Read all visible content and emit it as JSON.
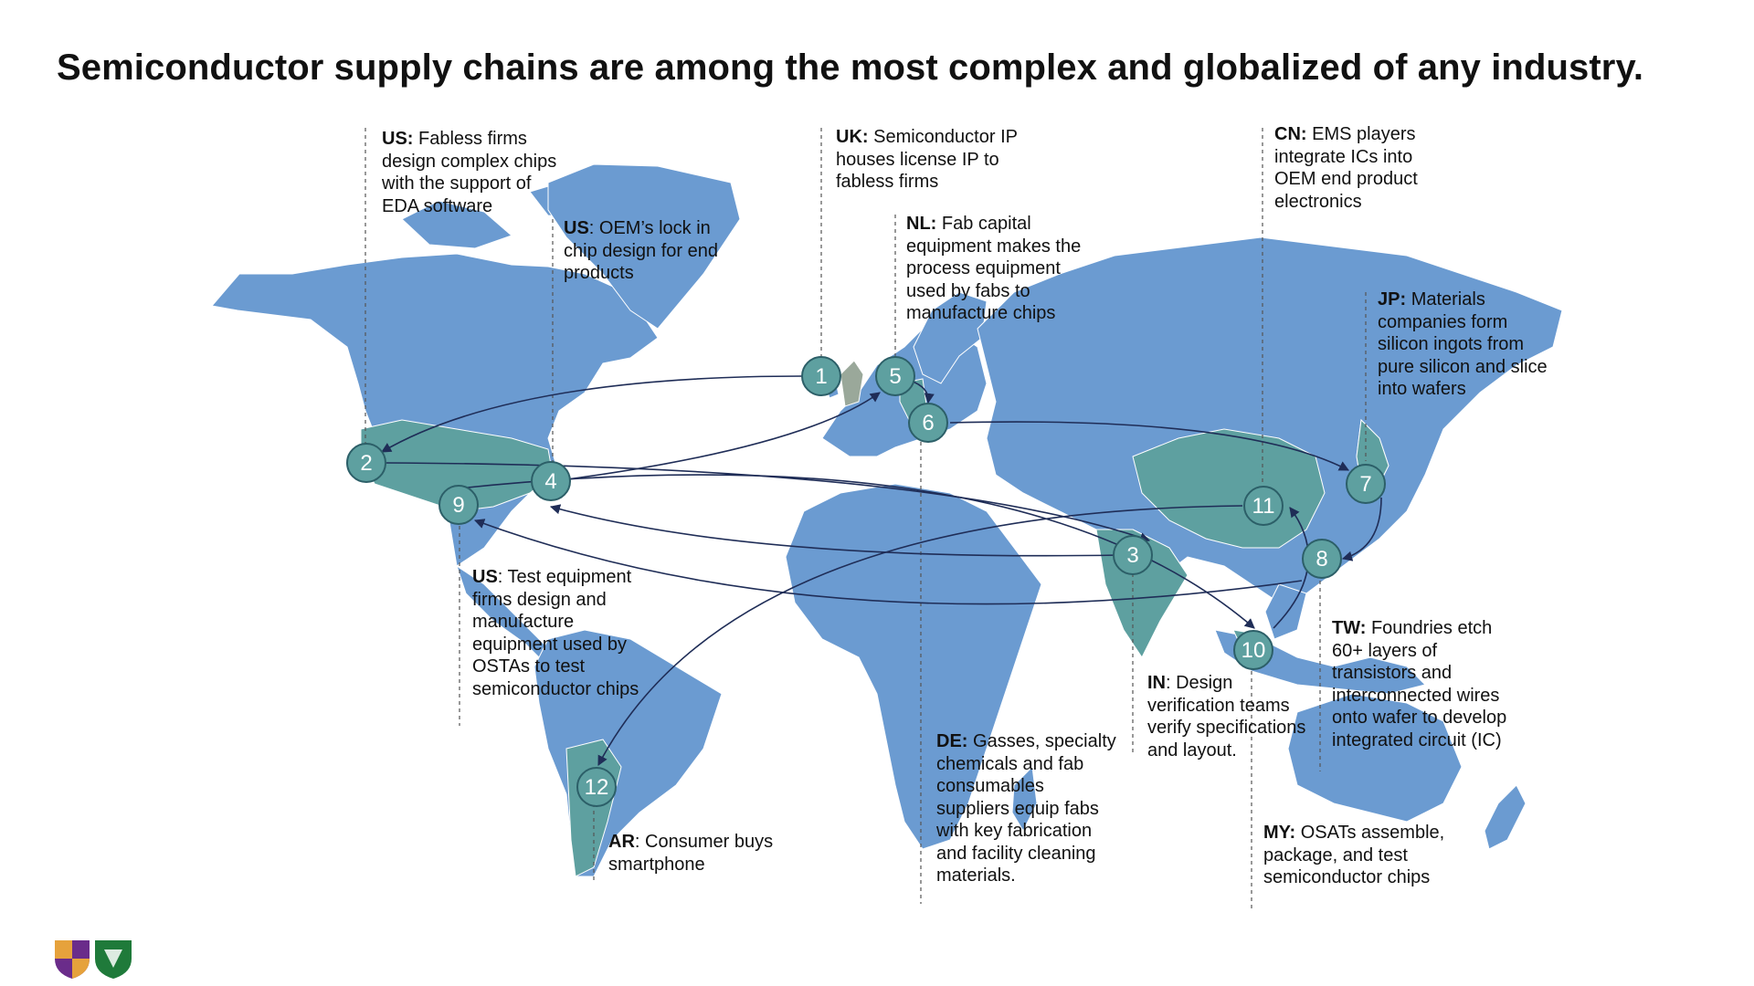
{
  "title": "Semiconductor supply chains are among the most complex and globalized of any industry.",
  "colors": {
    "land": "#6b9bd1",
    "land_highlight": "#5ea0a0",
    "uk_highlight": "#9aa89a",
    "marker_fill": "#5ea0a0",
    "marker_stroke": "#2c5f68",
    "arrow": "#1f2d57",
    "leader": "#555555"
  },
  "markers": [
    {
      "id": "1",
      "label": "1"
    },
    {
      "id": "2",
      "label": "2"
    },
    {
      "id": "3",
      "label": "3"
    },
    {
      "id": "4",
      "label": "4"
    },
    {
      "id": "5",
      "label": "5"
    },
    {
      "id": "6",
      "label": "6"
    },
    {
      "id": "7",
      "label": "7"
    },
    {
      "id": "8",
      "label": "8"
    },
    {
      "id": "9",
      "label": "9"
    },
    {
      "id": "10",
      "label": "10"
    },
    {
      "id": "11",
      "label": "11"
    },
    {
      "id": "12",
      "label": "12"
    }
  ],
  "notes": {
    "us_fabless": {
      "country": "US:",
      "text": "Fabless firms design complex chips with the support of EDA software"
    },
    "us_oem": {
      "country": "US",
      "text": ": OEM’s lock in chip design for end products"
    },
    "uk": {
      "country": "UK:",
      "text": "Semiconductor IP houses license IP to fabless firms"
    },
    "nl": {
      "country": "NL:",
      "text": "Fab capital equipment makes the process equipment used by fabs to manufacture chips"
    },
    "cn": {
      "country": "CN:",
      "text": "EMS players integrate ICs into OEM end product electronics"
    },
    "jp": {
      "country": "JP:",
      "text": "Materials companies form silicon ingots from pure silicon and slice into wafers"
    },
    "us_test": {
      "country": "US",
      "text": ": Test equipment firms design and manufacture equipment used by OSTAs to test semiconductor chips"
    },
    "in": {
      "country": "IN",
      "text": ": Design verification teams verify specifications and layout."
    },
    "tw": {
      "country": "TW:",
      "text": "Foundries etch 60+ layers of transistors and interconnected wires onto wafer to develop integrated circuit (IC)"
    },
    "de": {
      "country": "DE:",
      "text": "Gasses, specialty chemicals and fab consumables suppliers equip fabs with key fabrication and facility cleaning materials."
    },
    "ar": {
      "country": "AR",
      "text": ": Consumer buys smartphone"
    },
    "my": {
      "country": "MY:",
      "text": "OSATs assemble, package, and test semiconductor chips"
    }
  }
}
